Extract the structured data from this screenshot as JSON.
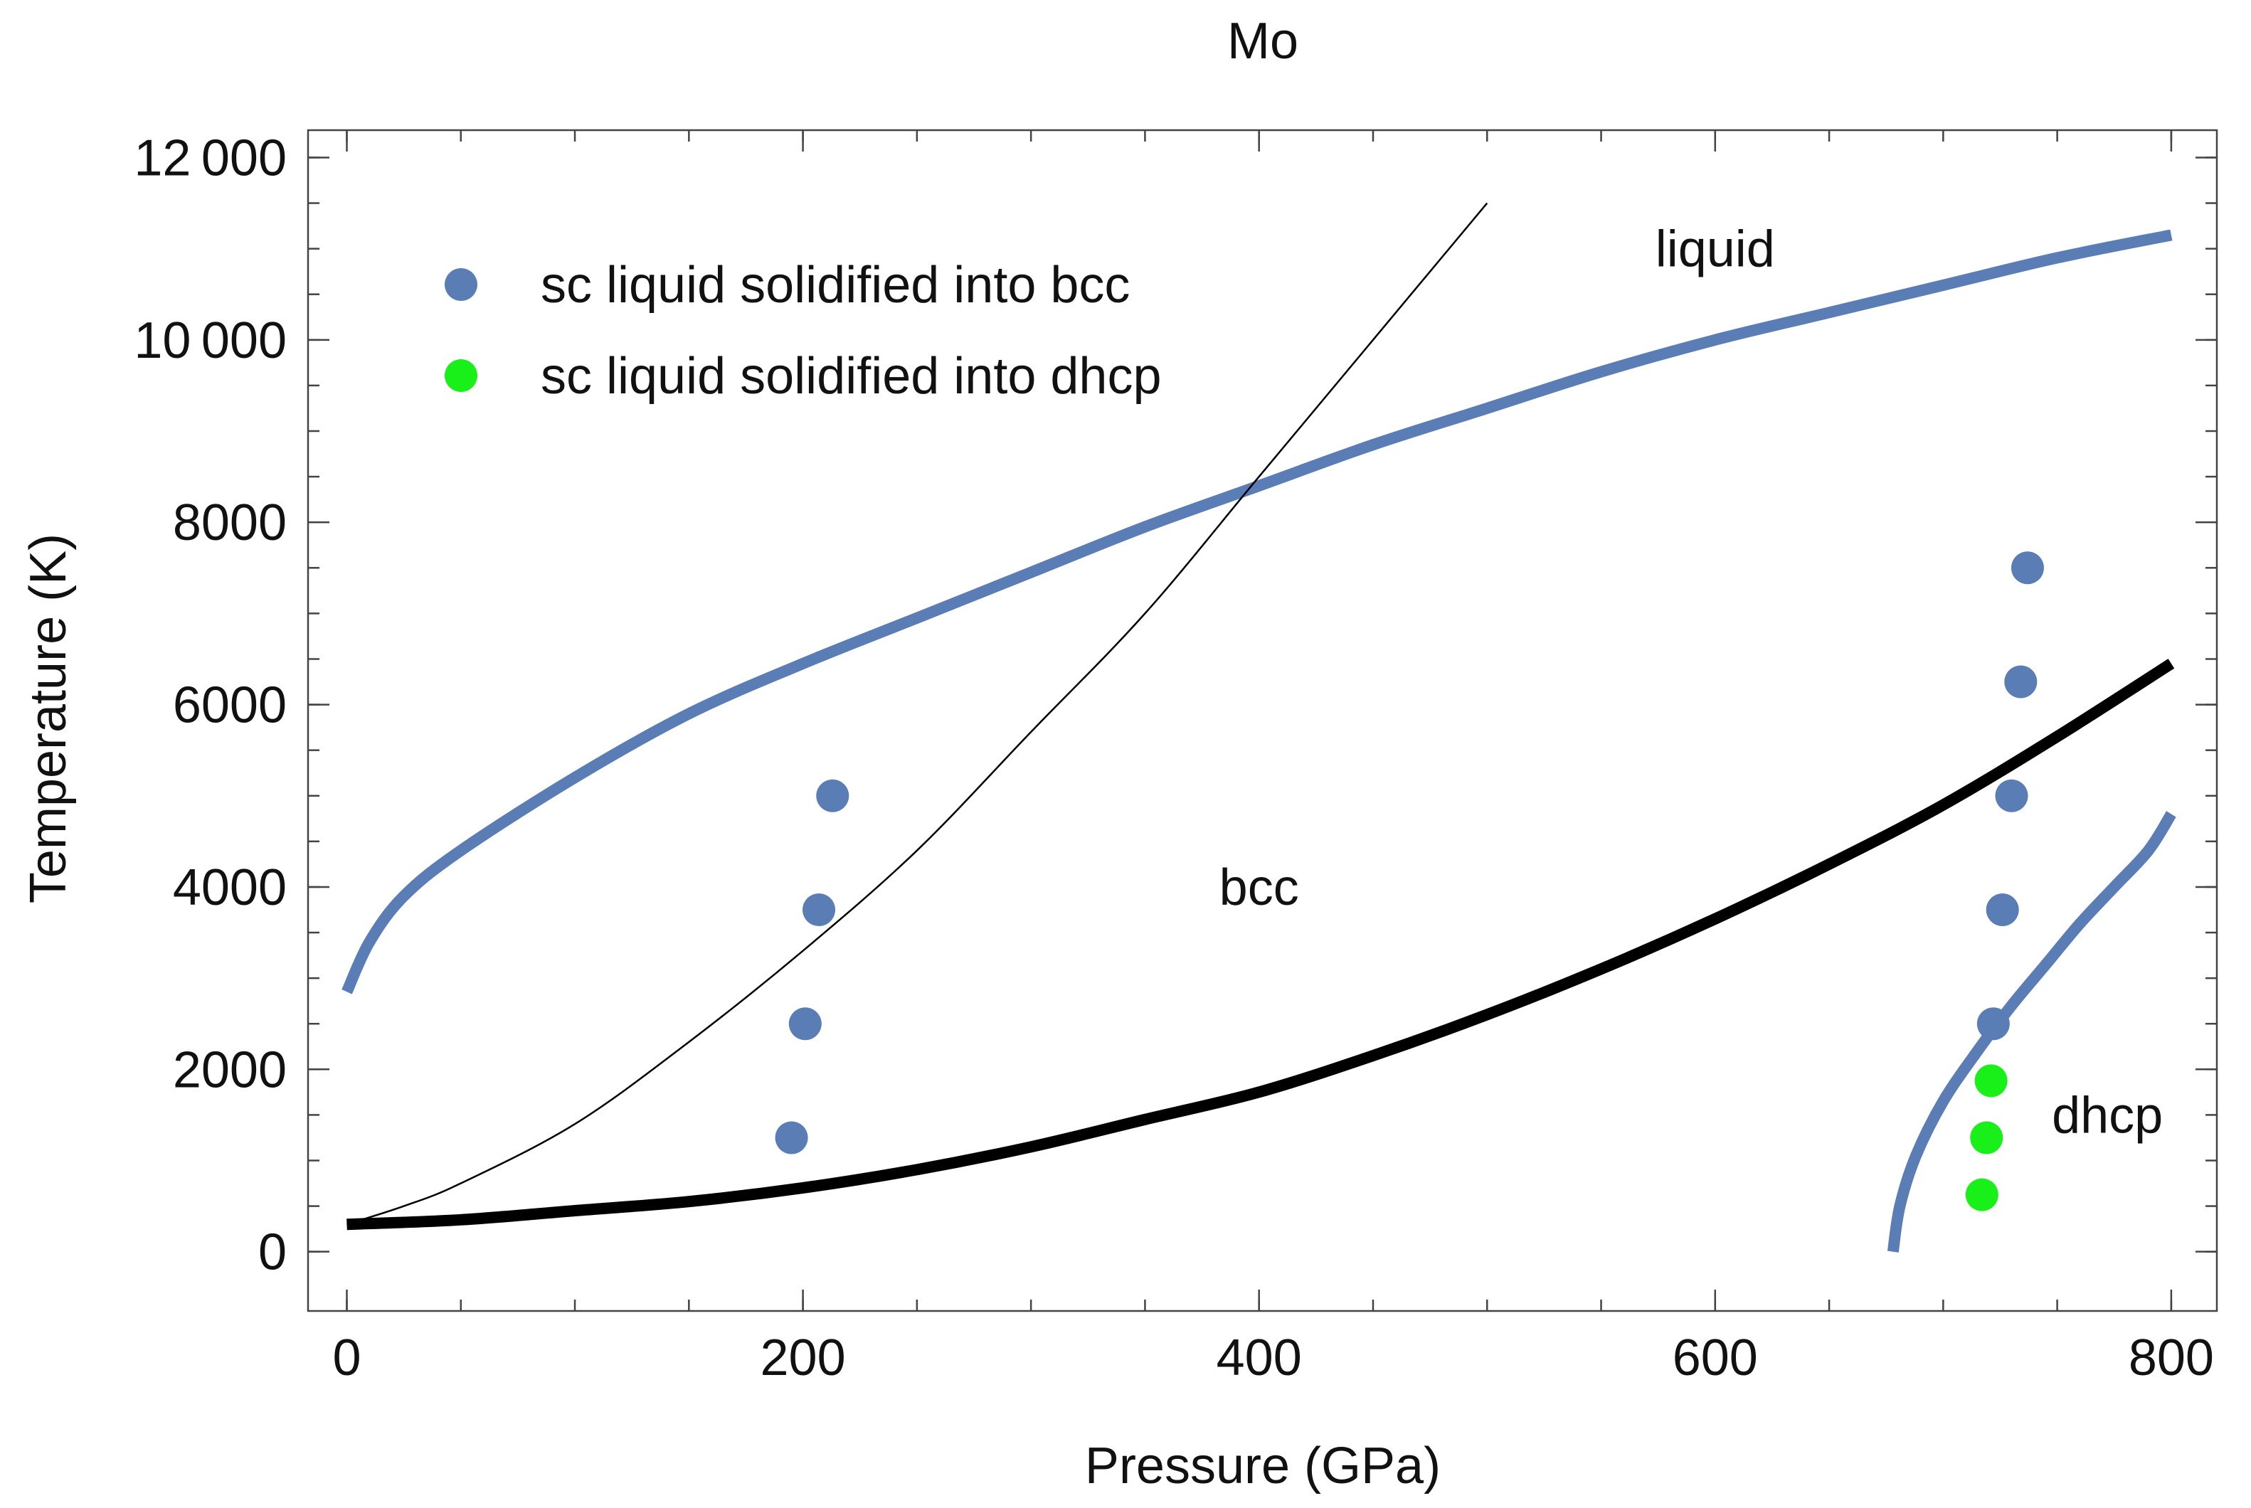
{
  "chart_data": {
    "type": "scatter",
    "title": "Mo",
    "xlabel": "Pressure (GPa)",
    "ylabel": "Temperature (K)",
    "xlim": [
      -17,
      820
    ],
    "ylim": [
      -650,
      12300
    ],
    "xticks": [
      0,
      200,
      400,
      600,
      800
    ],
    "xtick_labels": [
      "0",
      "200",
      "400",
      "600",
      "800"
    ],
    "xminor_step": 50,
    "yticks": [
      0,
      2000,
      4000,
      6000,
      8000,
      10000,
      12000
    ],
    "ytick_labels": [
      "0",
      "2000",
      "4000",
      "6000",
      "8000",
      "10 000",
      "12 000"
    ],
    "yminor_step": 500,
    "grid": false,
    "legend_position": "top-left",
    "colors": {
      "blue": "#5b7db5",
      "green": "#19f019",
      "black": "#000000"
    },
    "series": [
      {
        "name": "sc liquid solidified into bcc",
        "kind": "points",
        "color": "#5b7db5",
        "x": [
          195,
          201,
          207,
          213,
          722,
          726,
          730,
          734,
          737
        ],
        "y": [
          1250,
          2500,
          3750,
          5000,
          2500,
          3750,
          5000,
          6250,
          7500
        ]
      },
      {
        "name": "sc liquid solidified into dhcp",
        "kind": "points",
        "color": "#19f019",
        "x": [
          717,
          719,
          721
        ],
        "y": [
          625,
          1250,
          1875
        ]
      }
    ],
    "curves": [
      {
        "id": "melting-line",
        "color": "#5b7db5",
        "width": "thick",
        "x": [
          0,
          10,
          25,
          50,
          100,
          150,
          200,
          250,
          300,
          350,
          400,
          450,
          500,
          550,
          600,
          650,
          700,
          750,
          800
        ],
        "y": [
          2850,
          3400,
          3900,
          4400,
          5200,
          5900,
          6450,
          6950,
          7450,
          7950,
          8400,
          8850,
          9250,
          9650,
          10000,
          10300,
          10600,
          10900,
          11150
        ]
      },
      {
        "id": "bcc-dhcp-boundary",
        "color": "#5b7db5",
        "width": "thick",
        "x": [
          678,
          681,
          688,
          700,
          715,
          730,
          745,
          760,
          775,
          790,
          800
        ],
        "y": [
          0,
          500,
          1050,
          1650,
          2200,
          2700,
          3150,
          3600,
          4000,
          4400,
          4800
        ]
      },
      {
        "id": "black-thick-curve",
        "color": "#000000",
        "width": "thick",
        "x": [
          0,
          50,
          100,
          150,
          200,
          250,
          300,
          350,
          400,
          450,
          500,
          550,
          600,
          650,
          700,
          750,
          800
        ],
        "y": [
          300,
          350,
          450,
          550,
          700,
          900,
          1150,
          1450,
          1750,
          2150,
          2600,
          3100,
          3650,
          4250,
          4900,
          5650,
          6450
        ]
      },
      {
        "id": "black-thin-curve",
        "color": "#000000",
        "width": "thin",
        "x": [
          0,
          25,
          50,
          100,
          150,
          200,
          250,
          300,
          350,
          400,
          450,
          500
        ],
        "y": [
          300,
          500,
          750,
          1400,
          2300,
          3300,
          4400,
          5700,
          7000,
          8500,
          10000,
          11500
        ]
      }
    ],
    "annotations": [
      {
        "text": "liquid",
        "x": 600,
        "y": 11000
      },
      {
        "text": "bcc",
        "x": 400,
        "y": 4000
      },
      {
        "text": "dhcp",
        "x": 772,
        "y": 1500
      }
    ]
  }
}
